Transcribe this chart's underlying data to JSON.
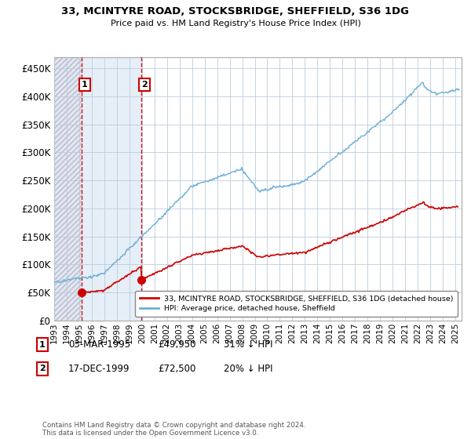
{
  "title": "33, MCINTYRE ROAD, STOCKSBRIDGE, SHEFFIELD, S36 1DG",
  "subtitle": "Price paid vs. HM Land Registry's House Price Index (HPI)",
  "ylabel_ticks": [
    "£0",
    "£50K",
    "£100K",
    "£150K",
    "£200K",
    "£250K",
    "£300K",
    "£350K",
    "£400K",
    "£450K"
  ],
  "ytick_values": [
    0,
    50000,
    100000,
    150000,
    200000,
    250000,
    300000,
    350000,
    400000,
    450000
  ],
  "ylim": [
    0,
    470000
  ],
  "xlim_start": 1993.0,
  "xlim_end": 2025.5,
  "hpi_color": "#6BAED6",
  "price_color": "#CC0000",
  "sale1_x": 1995.17,
  "sale1_y": 49950,
  "sale1_label": "1",
  "sale1_date": "03-MAR-1995",
  "sale1_price": "£49,950",
  "sale1_hpi": "31% ↓ HPI",
  "sale2_x": 1999.96,
  "sale2_y": 72500,
  "sale2_label": "2",
  "sale2_date": "17-DEC-1999",
  "sale2_price": "£72,500",
  "sale2_hpi": "20% ↓ HPI",
  "legend_line1": "33, MCINTYRE ROAD, STOCKSBRIDGE, SHEFFIELD, S36 1DG (detached house)",
  "legend_line2": "HPI: Average price, detached house, Sheffield",
  "footnote": "Contains HM Land Registry data © Crown copyright and database right 2024.\nThis data is licensed under the Open Government Licence v3.0.",
  "xtick_years": [
    1993,
    1994,
    1995,
    1996,
    1997,
    1998,
    1999,
    2000,
    2001,
    2002,
    2003,
    2004,
    2005,
    2006,
    2007,
    2008,
    2009,
    2010,
    2011,
    2012,
    2013,
    2014,
    2015,
    2016,
    2017,
    2018,
    2019,
    2020,
    2021,
    2022,
    2023,
    2024,
    2025
  ],
  "bg_hatch": "#D8DCE8",
  "bg_light_blue": "#DCE8F4",
  "bg_white": "#FFFFFF",
  "grid_color": "#BBCCDD"
}
